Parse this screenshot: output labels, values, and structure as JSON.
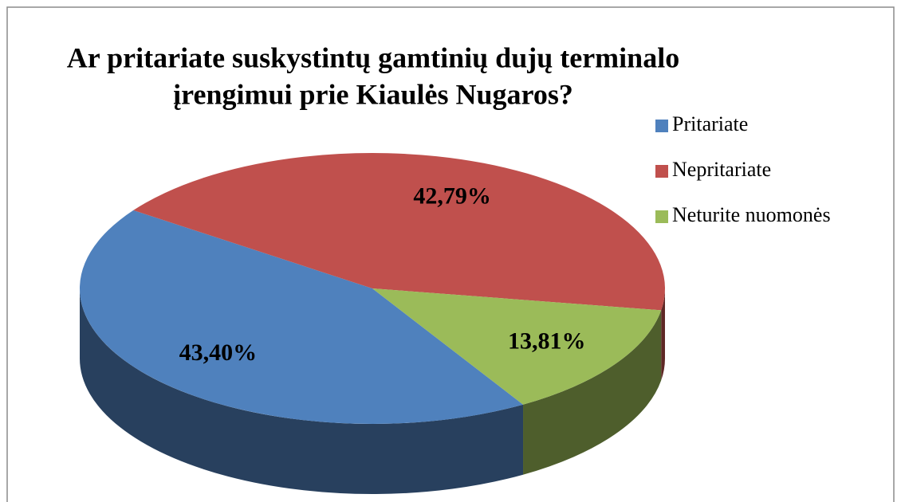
{
  "chart_data": {
    "type": "pie3d",
    "title": [
      "Ar pritariate suskystintų gamtinių dujų terminalo",
      "įrengimui prie Kiaulės Nugaros?"
    ],
    "labels": [
      "Pritariate",
      "Nepritariate",
      "Neturite nuomonės"
    ],
    "values": [
      43.4,
      42.79,
      13.81
    ],
    "value_labels": [
      "43,40%",
      "42,79%",
      "13,81%"
    ],
    "colors": [
      "#4f81bd",
      "#c0504d",
      "#9bbb59"
    ],
    "legend": "right"
  }
}
